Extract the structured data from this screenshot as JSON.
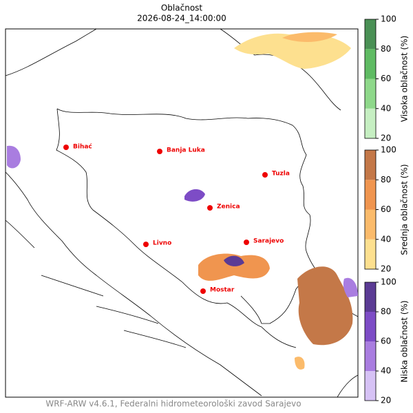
{
  "header": {
    "title": "Oblačnost",
    "datetime": "2026-08-24_14:00:00"
  },
  "cities": [
    "Bihać",
    "Banja Luka",
    "Tuzla",
    "Zenica",
    "Sarajevo",
    "Livno",
    "Mostar"
  ],
  "colorbars": [
    {
      "label": "Visoka oblačnost (%)",
      "ticks": [
        20,
        40,
        60,
        80,
        100
      ],
      "colors": [
        "#c6efc2",
        "#8ed88a",
        "#5fbb63",
        "#4a9055"
      ]
    },
    {
      "label": "Srednja oblačnost (%)",
      "ticks": [
        20,
        40,
        60,
        80,
        100
      ],
      "colors": [
        "#fde08f",
        "#fbbb6b",
        "#f0954f",
        "#c47848"
      ]
    },
    {
      "label": "Niska oblačnost (%)",
      "ticks": [
        20,
        40,
        60,
        80,
        100
      ],
      "colors": [
        "#d6c2f5",
        "#a97de0",
        "#7d4cc6",
        "#5b3b94"
      ]
    }
  ],
  "footer": "WRF-ARW v4.6.1, Federalni hidrometeorološki zavod Sarajevo"
}
